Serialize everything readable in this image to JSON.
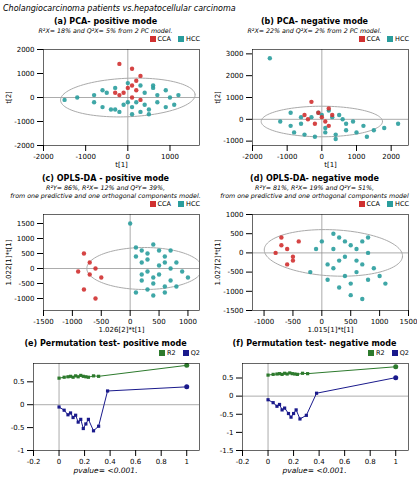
{
  "title": "Cholangiocarcinoma patients vs.hepatocellular carcinoma",
  "chart_data": [
    {
      "type": "scatter",
      "title": "(a) PCA- positive mode",
      "subtitle": [
        "R²X= 18% and Q²X= 5% from 2 PC model."
      ],
      "xlabel": "t[1]",
      "ylabel": "t[2]",
      "xlim": [
        -2000,
        1700
      ],
      "ylim": [
        -2000,
        2000
      ],
      "xticks": [
        -2000,
        -1000,
        0,
        1000
      ],
      "yticks": [
        -2000,
        -1000,
        0,
        1000,
        2000
      ],
      "legend": "upper right",
      "reference_lines": {
        "x": [
          0
        ],
        "y": [
          0
        ],
        "color": "#888888"
      },
      "ellipse": {
        "cx": 0,
        "cy": 0,
        "width": 3200,
        "height": 1600,
        "angle": 5,
        "color": "#aaaaaa"
      },
      "series": [
        {
          "name": "CCA",
          "color": "#d03030",
          "x": [
            -200,
            100,
            300,
            200,
            100,
            200,
            -100,
            -200,
            100,
            300,
            -300,
            0
          ],
          "values": [
            1400,
            1200,
            900,
            700,
            500,
            300,
            200,
            100,
            0,
            -100,
            200,
            400
          ]
        },
        {
          "name": "HCC",
          "color": "#2a9d9d",
          "x": [
            -500,
            -800,
            -1200,
            -1500,
            -600,
            -300,
            100,
            400,
            700,
            1000,
            1200,
            900,
            600,
            300,
            0,
            -300,
            -600,
            -800,
            500,
            300,
            -100,
            200,
            700,
            900,
            100,
            -200,
            400,
            600,
            1100,
            -400,
            0,
            500
          ],
          "values": [
            200,
            100,
            0,
            -100,
            -400,
            -500,
            -400,
            -300,
            -200,
            0,
            100,
            300,
            400,
            500,
            600,
            400,
            300,
            -200,
            -500,
            -600,
            -300,
            -200,
            100,
            -400,
            -700,
            -600,
            200,
            500,
            -300,
            -500,
            -200,
            -700
          ]
        }
      ]
    },
    {
      "type": "scatter",
      "title": "(b) PCA- negative mode",
      "subtitle": [
        "R²X= 22% and Q²X= 2% from 2 PC model."
      ],
      "xlabel": "t[1]",
      "ylabel": "t[2]",
      "xlim": [
        -2000,
        2500
      ],
      "ylim": [
        -1200,
        3200
      ],
      "xticks": [
        -2000,
        -1000,
        0,
        1000,
        2000
      ],
      "yticks": [
        -1000,
        0,
        1000,
        2000,
        3000
      ],
      "legend": "upper right",
      "reference_lines": {
        "x": [
          0
        ],
        "y": [
          0
        ],
        "color": "#888888"
      },
      "ellipse": {
        "cx": 0,
        "cy": -100,
        "width": 3500,
        "height": 1400,
        "angle": 0,
        "color": "#aaaaaa"
      },
      "series": [
        {
          "name": "CCA",
          "color": "#d03030",
          "x": [
            -300,
            -500,
            -100,
            200,
            0,
            -200,
            300,
            100,
            -400,
            200
          ],
          "values": [
            800,
            200,
            300,
            500,
            100,
            -200,
            200,
            -100,
            0,
            -300
          ]
        },
        {
          "name": "HCC",
          "color": "#2a9d9d",
          "x": [
            -1500,
            -1200,
            -900,
            -600,
            -300,
            0,
            300,
            600,
            900,
            1200,
            1500,
            1800,
            2200,
            -800,
            -500,
            -200,
            100,
            400,
            700,
            1000,
            1300,
            -100,
            200,
            500,
            700,
            -600,
            -900,
            100,
            400
          ],
          "values": [
            2800,
            -100,
            -300,
            -200,
            100,
            200,
            100,
            0,
            -100,
            -300,
            -500,
            -400,
            -200,
            -600,
            -700,
            -800,
            -600,
            -700,
            -500,
            -600,
            -800,
            300,
            400,
            200,
            -200,
            100,
            300,
            -400,
            -900
          ]
        }
      ]
    },
    {
      "type": "scatter",
      "title": "(c) OPLS-DA - positive mode",
      "subtitle": [
        "R²Y= 86%, R²X= 12% and Q²Y= 39%,",
        "from one predictive and one orthogonal components model."
      ],
      "xlabel": "1.026[2]*t[1]",
      "ylabel": "1.022[1]*t[1]",
      "xlim": [
        -1500,
        1200
      ],
      "ylim": [
        -1400,
        1800
      ],
      "xticks": [
        -1500,
        -1000,
        -500,
        0,
        500,
        1000
      ],
      "yticks": [
        -1000,
        -500,
        0,
        500,
        1000,
        1500
      ],
      "legend": "upper right",
      "reference_lines": {
        "x": [
          0
        ],
        "y": [
          0
        ],
        "color": "#888888"
      },
      "ellipse": {
        "cx": 250,
        "cy": 0,
        "width": 2000,
        "height": 1400,
        "angle": 0,
        "color": "#aaaaaa"
      },
      "series": [
        {
          "name": "CCA",
          "color": "#d03030",
          "x": [
            -800,
            -700,
            -900,
            -600,
            -700,
            -500,
            -800,
            -600
          ],
          "values": [
            500,
            200,
            -100,
            0,
            -200,
            -300,
            -700,
            -1000
          ]
        },
        {
          "name": "HCC",
          "color": "#2a9d9d",
          "x": [
            0,
            100,
            200,
            300,
            400,
            500,
            200,
            100,
            300,
            600,
            400,
            200,
            500,
            700,
            600,
            300,
            100,
            400,
            200,
            600,
            800,
            500,
            700,
            900,
            400,
            600,
            800,
            300,
            700,
            1000
          ],
          "values": [
            1500,
            700,
            200,
            -100,
            -300,
            100,
            600,
            400,
            500,
            200,
            -500,
            -400,
            -200,
            0,
            -600,
            -700,
            -800,
            -900,
            -200,
            400,
            200,
            600,
            -400,
            -100,
            800,
            -800,
            -600,
            300,
            600,
            -300
          ]
        }
      ]
    },
    {
      "type": "scatter",
      "title": "(d) OPLS-DA- negative mode",
      "subtitle": [
        "R²Y= 81%, R²X= 19% and Q²Y= 51%,",
        "from one predictive and one orthogonal components model"
      ],
      "xlabel": "1.015[1]*t[1]",
      "ylabel": "1.027[2]*t[1]",
      "xlim": [
        -1200,
        1500
      ],
      "ylim": [
        -1500,
        1000
      ],
      "xticks": [
        -1000,
        -500,
        0,
        500,
        1000,
        1500
      ],
      "yticks": [
        -1500,
        -1000,
        -500,
        0,
        500,
        1000
      ],
      "legend": "upper right",
      "reference_lines": {
        "x": [
          0
        ],
        "y": [
          0
        ],
        "color": "#888888"
      },
      "ellipse": {
        "cx": 200,
        "cy": 0,
        "width": 2400,
        "height": 1200,
        "angle": -5,
        "color": "#aaaaaa"
      },
      "series": [
        {
          "name": "CCA",
          "color": "#d03030",
          "x": [
            -700,
            -600,
            -500,
            -800,
            -400,
            -600,
            -700,
            -500
          ],
          "values": [
            400,
            100,
            -200,
            0,
            300,
            -300,
            200,
            -100
          ]
        },
        {
          "name": "HCC",
          "color": "#2a9d9d",
          "x": [
            0,
            200,
            400,
            600,
            800,
            100,
            300,
            500,
            700,
            900,
            -100,
            200,
            400,
            600,
            800,
            300,
            500,
            700,
            1000,
            200,
            400,
            600,
            800,
            1100,
            -200,
            100,
            300,
            500,
            700
          ],
          "values": [
            300,
            100,
            -100,
            -200,
            0,
            -300,
            400,
            200,
            300,
            -400,
            100,
            -400,
            -600,
            -500,
            -700,
            -200,
            -800,
            -300,
            -600,
            500,
            300,
            100,
            400,
            -800,
            -500,
            -700,
            -900,
            -1100,
            -1200
          ]
        }
      ]
    },
    {
      "type": "line",
      "title": "(e) Permutation test- positive mode",
      "annotations": [
        "pvalue= <0.001."
      ],
      "xlim": [
        -0.2,
        1.1
      ],
      "ylim": [
        -1.0,
        0.9
      ],
      "xticks": [
        -0.2,
        0,
        0.2,
        0.4,
        0.6,
        0.8,
        1
      ],
      "yticks": [
        -1,
        -0.5,
        0,
        0.5
      ],
      "legend": "upper right",
      "reference_lines": {
        "x": [
          0
        ],
        "y": [
          0
        ],
        "color": "#888888"
      },
      "series": [
        {
          "name": "R2",
          "color": "#2d7a2d",
          "marker": "square",
          "x": [
            0.0,
            0.04,
            0.07,
            0.09,
            0.11,
            0.13,
            0.15,
            0.17,
            0.19,
            0.21,
            0.23,
            0.27,
            0.31,
            1.0
          ],
          "values": [
            0.58,
            0.6,
            0.61,
            0.62,
            0.6,
            0.63,
            0.61,
            0.64,
            0.62,
            0.61,
            0.6,
            0.63,
            0.62,
            0.86
          ]
        },
        {
          "name": "Q2",
          "color": "#1a1a8c",
          "marker": "square",
          "x": [
            0.0,
            0.04,
            0.07,
            0.09,
            0.11,
            0.13,
            0.15,
            0.17,
            0.19,
            0.21,
            0.23,
            0.27,
            0.31,
            0.38,
            1.0
          ],
          "values": [
            -0.05,
            -0.12,
            -0.22,
            -0.18,
            -0.28,
            -0.23,
            -0.38,
            -0.32,
            -0.52,
            -0.42,
            -0.32,
            -0.57,
            -0.47,
            0.3,
            0.39
          ]
        }
      ]
    },
    {
      "type": "line",
      "title": "(f) Permutation test- negative mode",
      "annotations": [
        "pvalue= <0.001."
      ],
      "xlim": [
        -0.2,
        1.1
      ],
      "ylim": [
        -1.5,
        0.9
      ],
      "xticks": [
        -0.2,
        0,
        0.2,
        0.4,
        0.6,
        0.8,
        1
      ],
      "yticks": [
        -1.5,
        -1,
        -0.5,
        0,
        0.5
      ],
      "legend": "upper right",
      "reference_lines": {
        "x": [
          0
        ],
        "y": [
          0
        ],
        "color": "#888888"
      },
      "series": [
        {
          "name": "R2",
          "color": "#2d7a2d",
          "marker": "square",
          "x": [
            0.0,
            0.04,
            0.07,
            0.09,
            0.11,
            0.13,
            0.15,
            0.17,
            0.19,
            0.21,
            0.23,
            0.27,
            0.31,
            1.0
          ],
          "values": [
            0.58,
            0.6,
            0.61,
            0.62,
            0.6,
            0.63,
            0.61,
            0.64,
            0.62,
            0.61,
            0.6,
            0.63,
            0.62,
            0.81
          ]
        },
        {
          "name": "Q2",
          "color": "#1a1a8c",
          "marker": "square",
          "x": [
            0.0,
            0.04,
            0.07,
            0.09,
            0.11,
            0.13,
            0.16,
            0.18,
            0.2,
            0.22,
            0.25,
            0.3,
            0.38,
            1.0
          ],
          "values": [
            -0.1,
            -0.18,
            -0.28,
            -0.23,
            -0.38,
            -0.33,
            -0.48,
            -0.58,
            -0.48,
            -0.38,
            -0.63,
            -0.53,
            0.08,
            0.51
          ]
        }
      ]
    }
  ]
}
